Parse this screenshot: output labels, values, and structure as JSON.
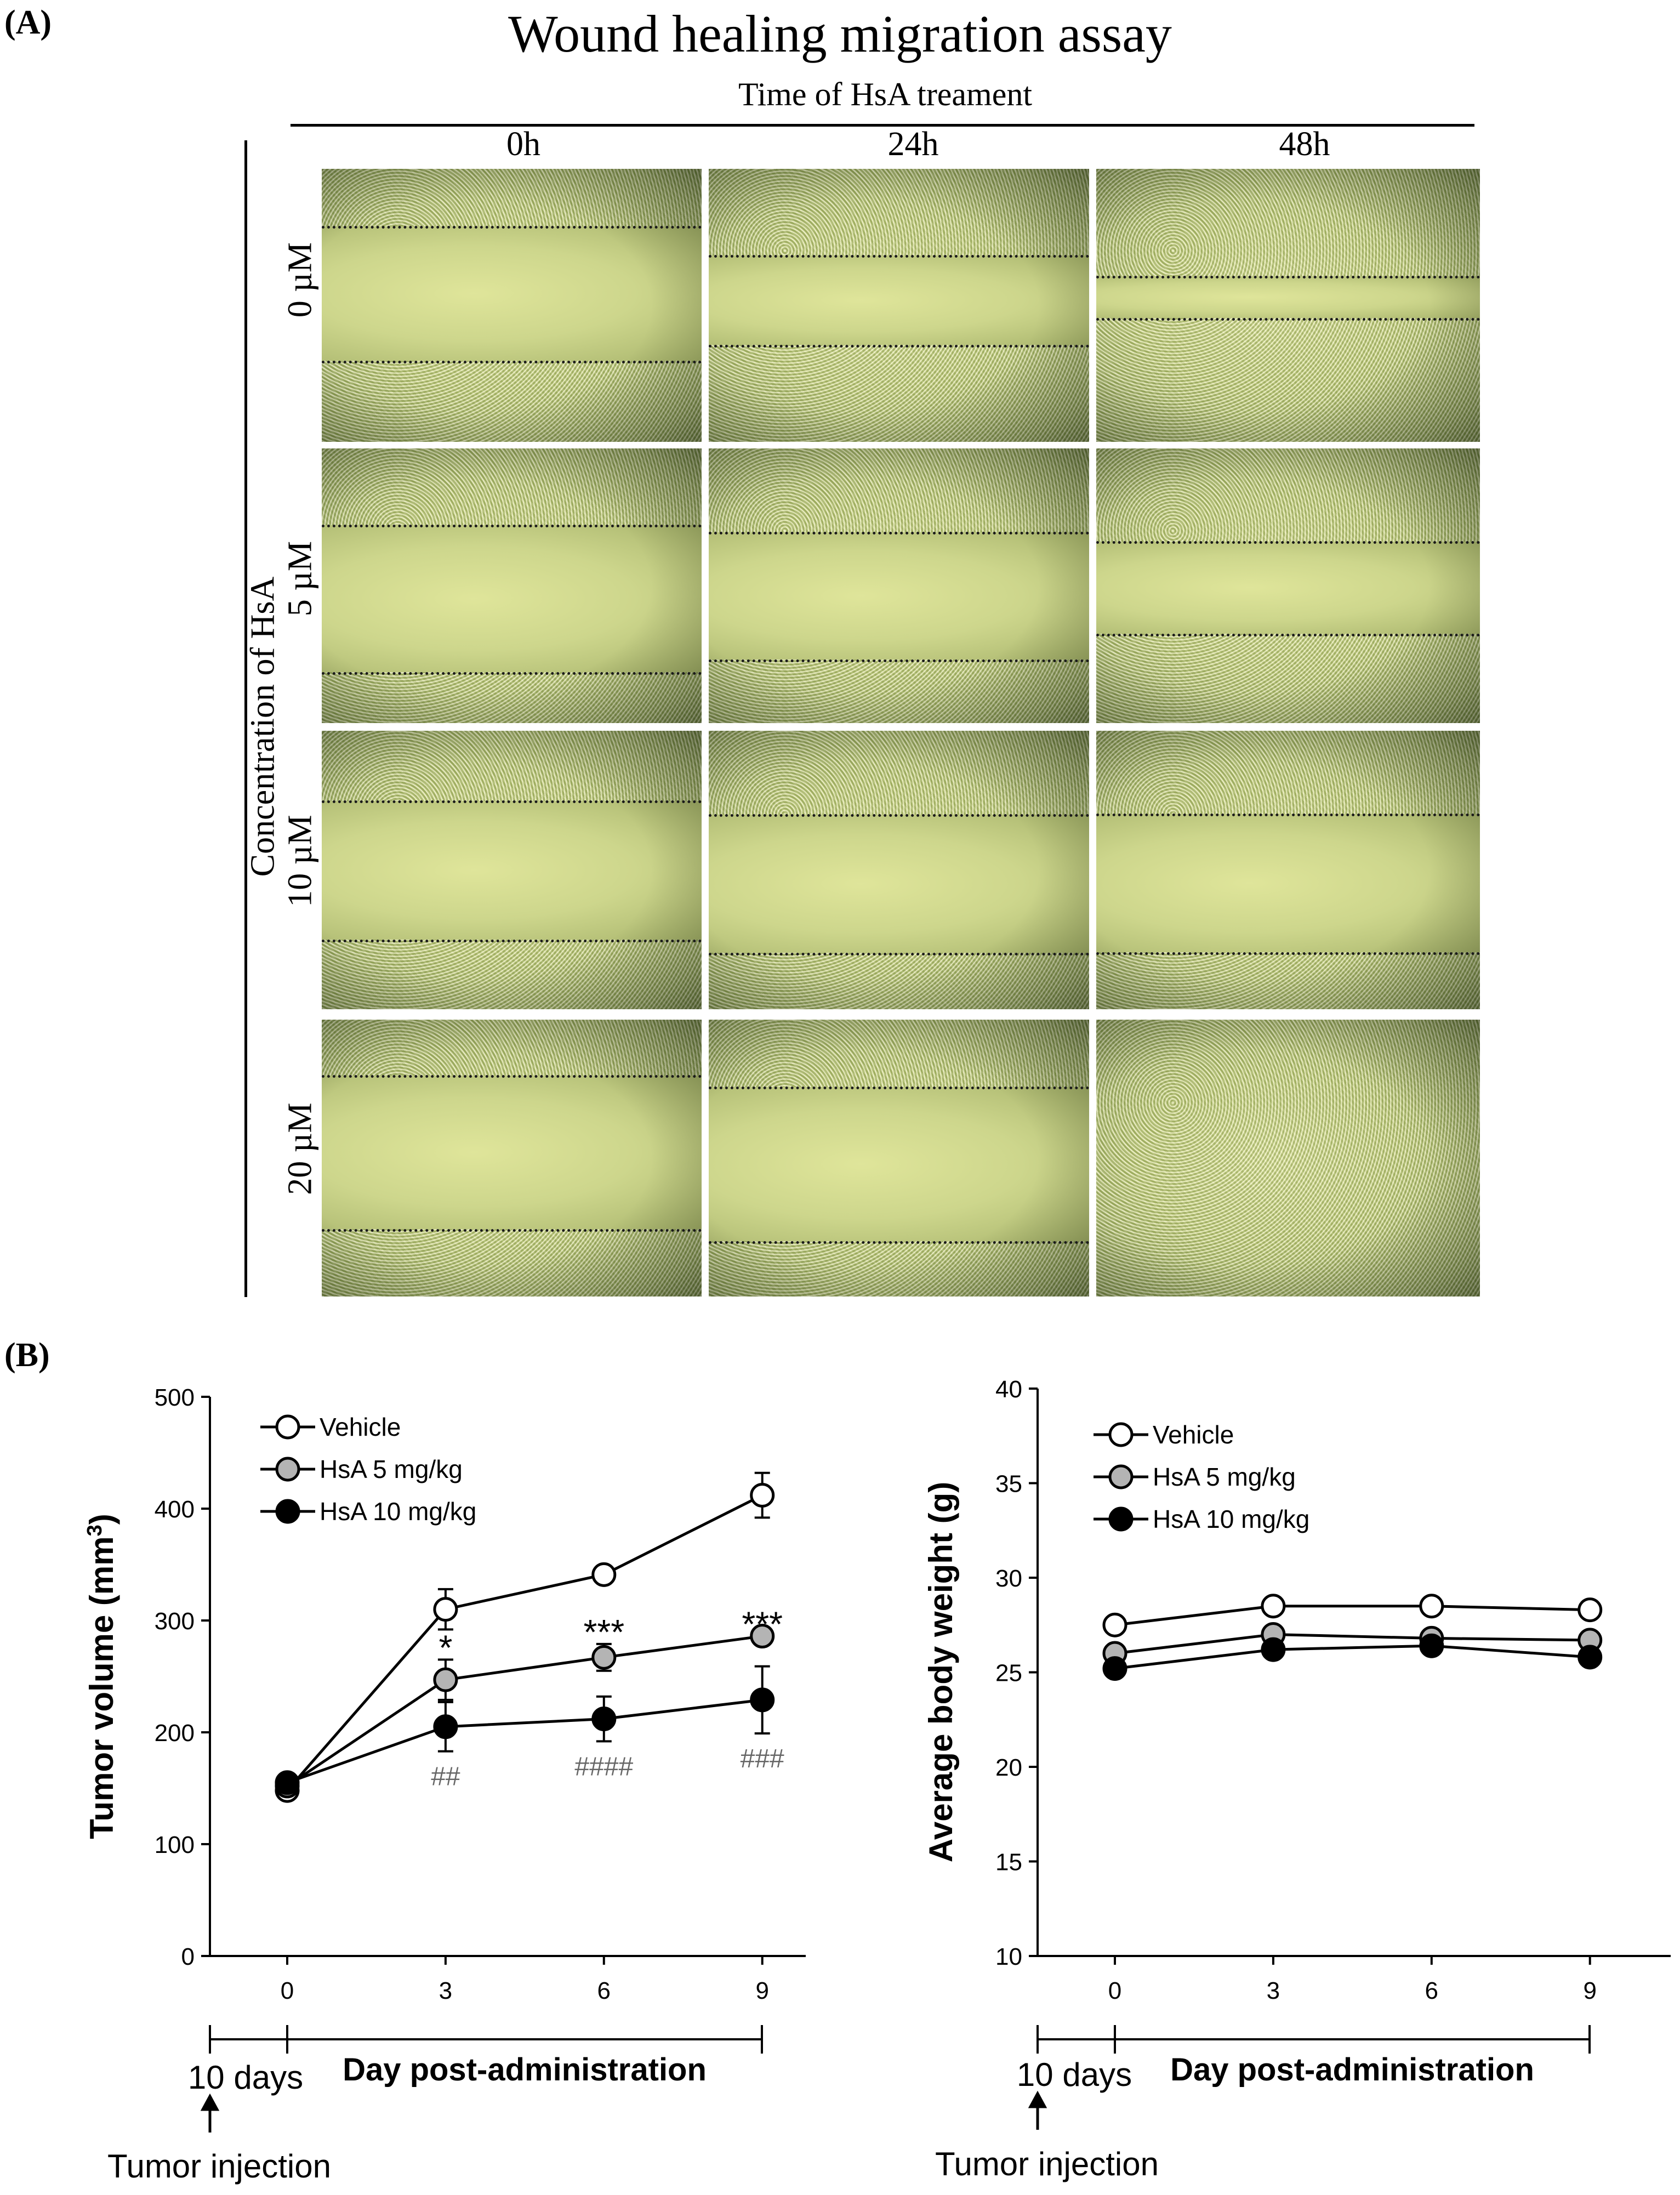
{
  "panel_a": {
    "label": "(A)",
    "title": "Wound healing migration assay",
    "time_axis_label": "Time of HsA treament",
    "conc_axis_label": "Concentration of HsA",
    "time_points": [
      "0h",
      "24h",
      "48h"
    ],
    "concentrations": [
      "0 µM",
      "5 µM",
      "10 µM",
      "20 µM"
    ]
  },
  "panel_b": {
    "label": "(B)"
  },
  "chart_data": [
    {
      "type": "line",
      "name": "tumor-volume-chart",
      "xlabel": "Day post-administration",
      "ylabel": "Tumor volume (mm",
      "ylabel_sup": "3",
      "ylabel_close": ")",
      "x": [
        0,
        3,
        6,
        9
      ],
      "xticks": [
        "0",
        "3",
        "6",
        "9"
      ],
      "ylim": [
        0,
        500
      ],
      "yticks": [
        "0",
        "100",
        "200",
        "300",
        "400",
        "500"
      ],
      "series": [
        {
          "name": "Vehicle",
          "marker": "open",
          "values": [
            148,
            310,
            341,
            412
          ],
          "errors": [
            0,
            18,
            0,
            20
          ]
        },
        {
          "name": "HsA 5 mg/kg",
          "marker": "gray",
          "values": [
            152,
            247,
            267,
            286
          ],
          "errors": [
            0,
            18,
            12,
            0
          ]
        },
        {
          "name": "HsA 10 mg/kg",
          "marker": "black",
          "values": [
            155,
            205,
            212,
            229
          ],
          "errors": [
            0,
            22,
            20,
            30
          ]
        }
      ],
      "annotations_star": [
        {
          "x": 3,
          "text": "*"
        },
        {
          "x": 6,
          "text": "***"
        },
        {
          "x": 9,
          "text": "***"
        }
      ],
      "annotations_hash": [
        {
          "x": 3,
          "text": "##"
        },
        {
          "x": 6,
          "text": "####"
        },
        {
          "x": 9,
          "text": "###"
        }
      ],
      "pre_label": "10 days",
      "injection_label": "Tumor injection"
    },
    {
      "type": "line",
      "name": "body-weight-chart",
      "xlabel": "Day post-administration",
      "ylabel": "Average body weight (g)",
      "x": [
        0,
        3,
        6,
        9
      ],
      "xticks": [
        "0",
        "3",
        "6",
        "9"
      ],
      "ylim": [
        10,
        40
      ],
      "yticks": [
        "10",
        "15",
        "20",
        "25",
        "30",
        "35",
        "40"
      ],
      "series": [
        {
          "name": "Vehicle",
          "marker": "open",
          "values": [
            27.5,
            28.5,
            28.5,
            28.3
          ]
        },
        {
          "name": "HsA 5 mg/kg",
          "marker": "gray",
          "values": [
            26.0,
            27.0,
            26.8,
            26.7
          ]
        },
        {
          "name": "HsA 10 mg/kg",
          "marker": "black",
          "values": [
            25.2,
            26.2,
            26.4,
            25.8
          ]
        }
      ],
      "pre_label": "10 days",
      "injection_label": "Tumor injection"
    }
  ]
}
